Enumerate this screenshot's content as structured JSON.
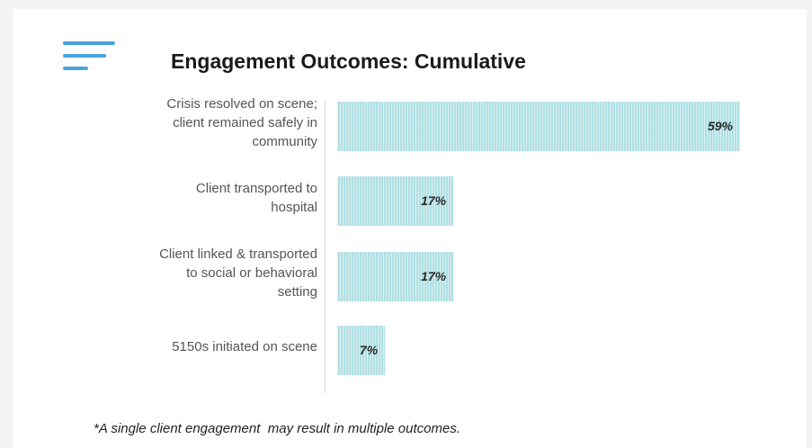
{
  "chart_data": {
    "type": "bar",
    "orientation": "horizontal",
    "title": "Engagement Outcomes: Cumulative",
    "categories": [
      "Crisis resolved on scene;\nclient remained safely in\ncommunity",
      "Client transported to\nhospital",
      "Client linked & transported\nto social or behavioral\nsetting",
      "5150s initiated on scene"
    ],
    "values": [
      59,
      17,
      17,
      7
    ],
    "value_labels": [
      "59%",
      "17%",
      "17%",
      "7%"
    ],
    "xlim": [
      0,
      60
    ],
    "grid": false,
    "bar_color": "#aedfe3"
  },
  "footnote": "*A single client engagement  may result in multiple outcomes.",
  "icons": {
    "menu": "menu-lines-icon"
  },
  "colors": {
    "accent": "#4aa3d9",
    "bar": "#aedfe3"
  }
}
